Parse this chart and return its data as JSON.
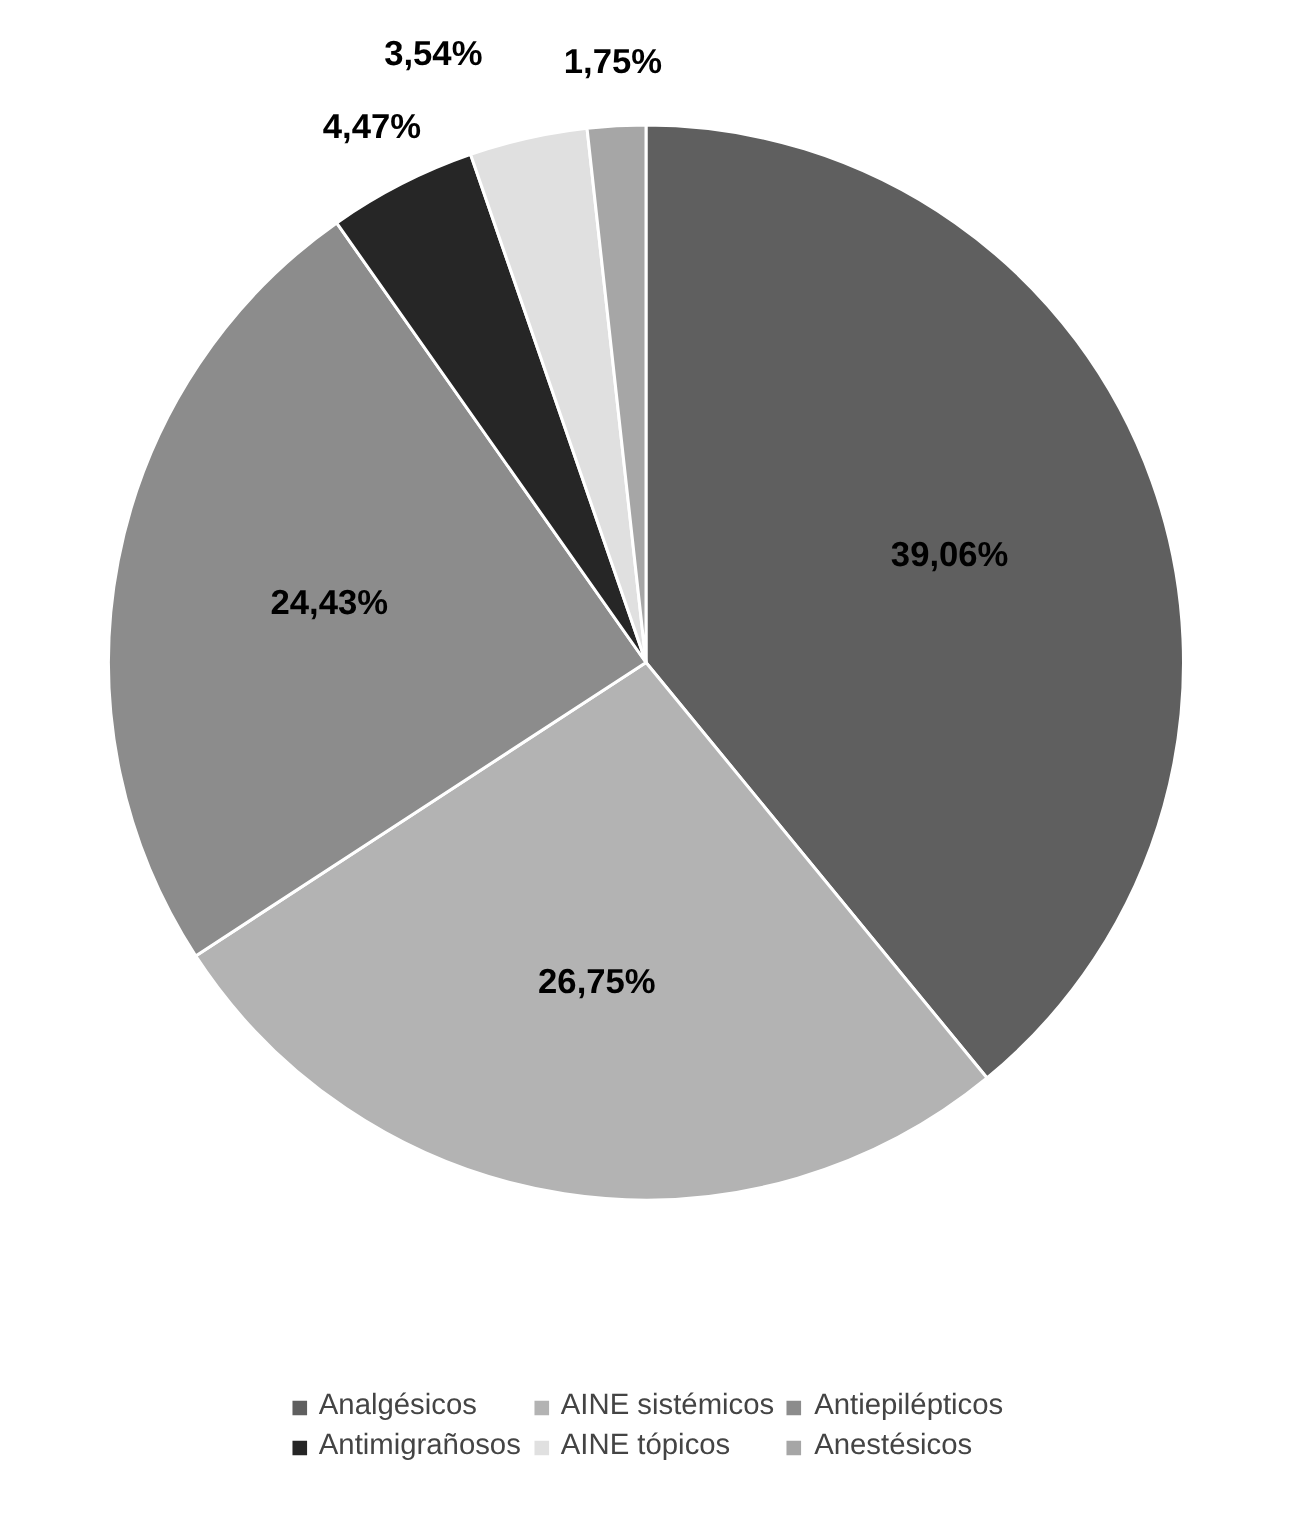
{
  "chart_data": {
    "type": "pie",
    "categories": [
      "Analgésicos",
      "AINE sistémicos",
      "Antiepilépticos",
      "Antimigrañosos",
      "AINE tópicos",
      "Anestésicos"
    ],
    "values": [
      39.06,
      26.75,
      24.43,
      4.47,
      3.54,
      1.75
    ],
    "colors": [
      "#5f5f5f",
      "#b3b3b3",
      "#8c8c8c",
      "#262626",
      "#e0e0e0",
      "#a6a6a6"
    ],
    "value_labels": [
      "39,06%",
      "26,75%",
      "24,43%",
      "4,47%",
      "3,54%",
      "1,75%"
    ],
    "legend": "bottom"
  }
}
